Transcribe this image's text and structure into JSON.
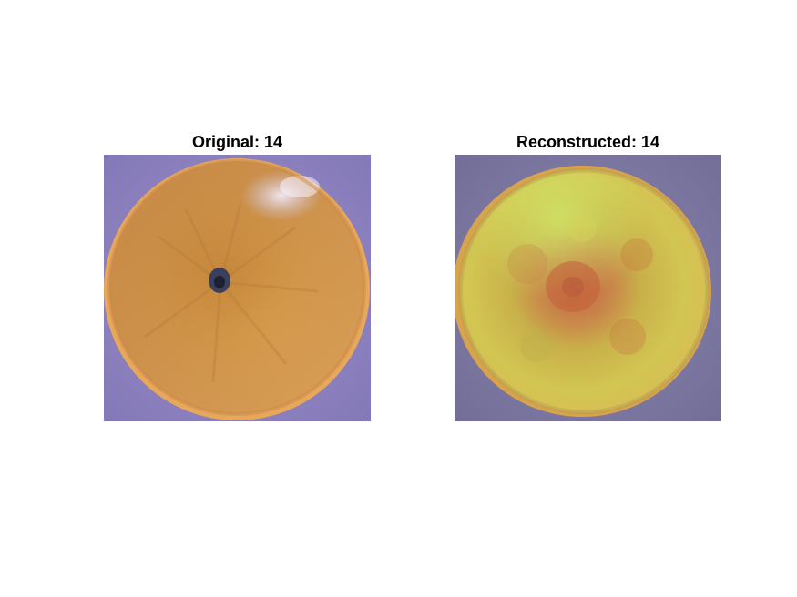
{
  "figure": {
    "panels": [
      {
        "title": "Original: 14",
        "image": "orange-fruit-original",
        "colors": {
          "background": "#8f86c0",
          "flesh": "#d49a4a",
          "rim": "#e8a85a",
          "center": "#2a3350"
        }
      },
      {
        "title": "Reconstructed: 14",
        "image": "orange-fruit-reconstructed",
        "colors": {
          "background": "#7f7ca6",
          "flesh": "#cfc24a",
          "rim": "#dbb84e",
          "center": "#c9623a"
        }
      }
    ]
  }
}
